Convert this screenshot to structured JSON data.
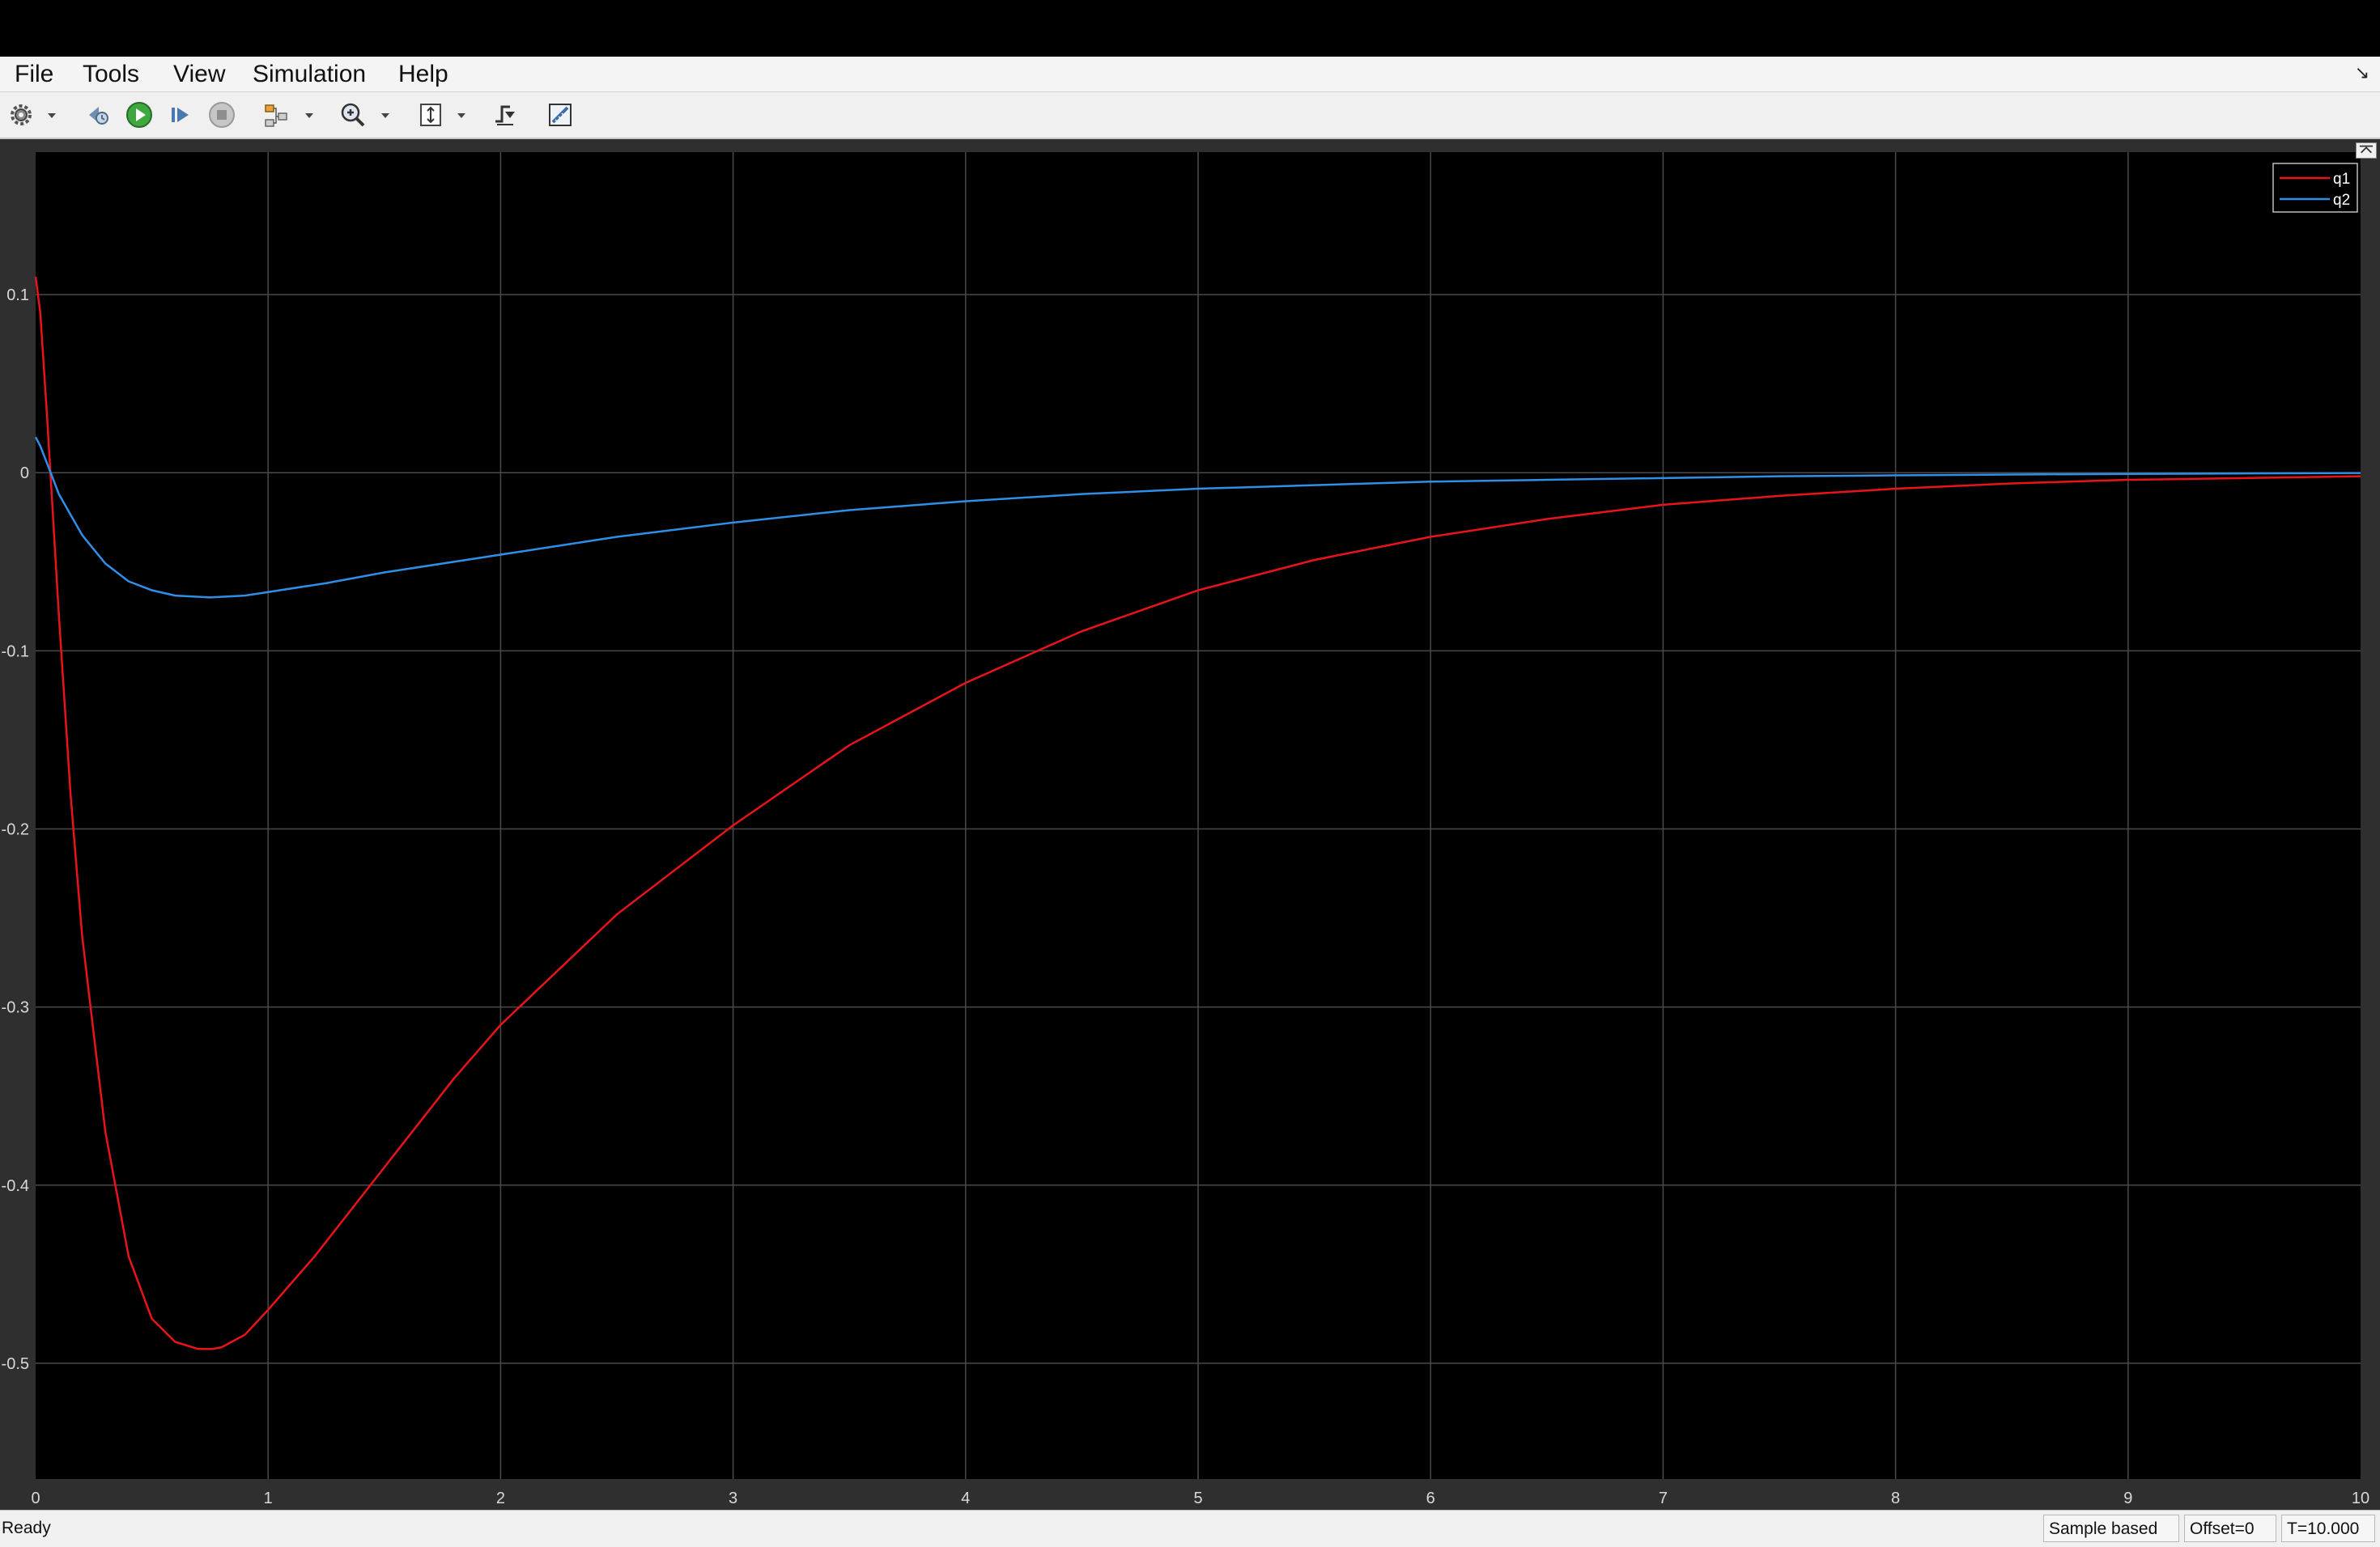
{
  "menu": {
    "items": [
      "File",
      "Tools",
      "View",
      "Simulation",
      "Help"
    ]
  },
  "toolbar": {
    "icons": [
      "settings-gear-icon",
      "dropdown-arrow-icon",
      "step-back-icon",
      "run-icon",
      "step-forward-icon",
      "stop-icon",
      "signal-highlight-icon",
      "dropdown-arrow-icon",
      "zoom-in-icon",
      "dropdown-arrow-icon",
      "autoscale-icon",
      "dropdown-arrow-icon",
      "triggers-icon",
      "measurements-icon"
    ]
  },
  "colors": {
    "plot_background": "#000000",
    "axes_background": "#2f2f2f",
    "grid": "#4a4a4a",
    "tick_text": "#d8d8d8",
    "q1": "#e8141a",
    "q2": "#2f8fe6",
    "run_green": "#3ea83e"
  },
  "chart_data": {
    "type": "line",
    "title": "",
    "xlabel": "",
    "ylabel": "",
    "xlim": [
      0,
      10
    ],
    "ylim": [
      -0.565,
      0.18
    ],
    "grid": true,
    "legend_position": "top-right",
    "xticks": [
      0,
      1,
      2,
      3,
      4,
      5,
      6,
      7,
      8,
      9,
      10
    ],
    "xtick_labels": [
      "0",
      "1",
      "2",
      "3",
      "4",
      "5",
      "6",
      "7",
      "8",
      "9",
      "10"
    ],
    "yticks": [
      0.1,
      0,
      -0.1,
      -0.2,
      -0.3,
      -0.4,
      -0.5
    ],
    "ytick_labels": [
      "0.1",
      "0",
      "-0.1",
      "-0.2",
      "-0.3",
      "-0.4",
      "-0.5"
    ],
    "series": [
      {
        "name": "q1",
        "color": "#e8141a",
        "x": [
          0,
          0.02,
          0.05,
          0.1,
          0.15,
          0.2,
          0.3,
          0.4,
          0.5,
          0.6,
          0.7,
          0.76,
          0.8,
          0.9,
          1.0,
          1.2,
          1.5,
          1.8,
          2.0,
          2.5,
          3.0,
          3.5,
          4.0,
          4.5,
          5.0,
          5.5,
          6.0,
          6.5,
          7.0,
          7.5,
          8.0,
          8.5,
          9.0,
          9.5,
          10.0
        ],
        "y": [
          0.11,
          0.09,
          0.03,
          -0.08,
          -0.18,
          -0.26,
          -0.37,
          -0.44,
          -0.475,
          -0.488,
          -0.492,
          -0.492,
          -0.491,
          -0.484,
          -0.47,
          -0.44,
          -0.39,
          -0.34,
          -0.31,
          -0.248,
          -0.198,
          -0.153,
          -0.118,
          -0.089,
          -0.066,
          -0.049,
          -0.036,
          -0.026,
          -0.018,
          -0.013,
          -0.009,
          -0.006,
          -0.004,
          -0.003,
          -0.002
        ]
      },
      {
        "name": "q2",
        "color": "#2f8fe6",
        "x": [
          0,
          0.02,
          0.05,
          0.1,
          0.2,
          0.3,
          0.4,
          0.5,
          0.6,
          0.75,
          0.9,
          1.0,
          1.25,
          1.5,
          2.0,
          2.5,
          3.0,
          3.5,
          4.0,
          4.5,
          5.0,
          5.5,
          6.0,
          6.5,
          7.0,
          7.5,
          8.0,
          8.5,
          9.0,
          9.5,
          10.0
        ],
        "y": [
          0.02,
          0.015,
          0.005,
          -0.012,
          -0.035,
          -0.051,
          -0.061,
          -0.066,
          -0.069,
          -0.07,
          -0.069,
          -0.067,
          -0.062,
          -0.056,
          -0.046,
          -0.036,
          -0.028,
          -0.021,
          -0.016,
          -0.012,
          -0.009,
          -0.007,
          -0.005,
          -0.004,
          -0.003,
          -0.002,
          -0.0015,
          -0.001,
          -0.0007,
          -0.0004,
          -0.0002
        ]
      }
    ]
  },
  "status": {
    "text": "Ready",
    "mode": "Sample based",
    "offset": "Offset=0",
    "time": "T=10.000"
  }
}
